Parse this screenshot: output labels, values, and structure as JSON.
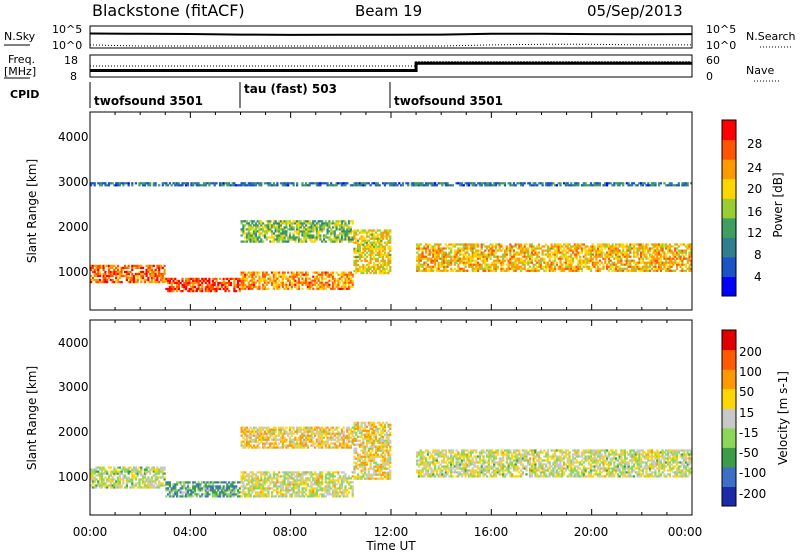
{
  "header": {
    "site": "Blackstone (fitACF)",
    "beam": "Beam 19",
    "date": "05/Sep/2013"
  },
  "noise_panel": {
    "left_label": "N.Sky",
    "left_ticks": [
      "10^5",
      "10^0"
    ],
    "right_ticks": [
      "10^5",
      "10^0"
    ],
    "right_label": "N.Search"
  },
  "freq_panel": {
    "left_label_1": "Freq.",
    "left_label_2": "[MHz]",
    "left_ticks": [
      "18",
      "8"
    ],
    "right_ticks": [
      "60",
      "0"
    ],
    "right_label": "Nave"
  },
  "cpid": {
    "label": "CPID",
    "modes": [
      {
        "name": "twofsound 3501",
        "start_hour": 0
      },
      {
        "name": "tau (fast) 503",
        "start_hour": 6
      },
      {
        "name": "twofsound 3501",
        "start_hour": 12
      }
    ]
  },
  "xaxis": {
    "label": "Time UT",
    "ticks": [
      "00:00",
      "04:00",
      "08:00",
      "12:00",
      "16:00",
      "20:00",
      "00:00"
    ]
  },
  "power_panel": {
    "ylabel": "Slant Range [km]",
    "yticks": [
      "4000",
      "3000",
      "2000",
      "1000"
    ],
    "colorbar_label": "Power [dB]",
    "colorbar_ticks": [
      "28",
      "24",
      "20",
      "16",
      "12",
      "8",
      "4"
    ],
    "colors": [
      "#0000ff",
      "#1a52c8",
      "#2f7f8f",
      "#3f9f60",
      "#9acd32",
      "#ffd700",
      "#ff9900",
      "#ff5500",
      "#ff0000"
    ]
  },
  "velocity_panel": {
    "ylabel": "Slant Range [km]",
    "yticks": [
      "4000",
      "3000",
      "2000",
      "1000"
    ],
    "colorbar_label": "Velocity [m s-1]",
    "colorbar_ticks": [
      "200",
      "100",
      "50",
      "15",
      "-15",
      "-50",
      "-100",
      "-200"
    ],
    "colors": [
      "#1b2ba8",
      "#3e6fc7",
      "#3c9c4a",
      "#8cd65a",
      "#c8c8c8",
      "#ffd700",
      "#ff9900",
      "#ff5a00",
      "#e00000"
    ]
  },
  "chart_data": [
    {
      "type": "line",
      "title": "N.Sky / N.Search",
      "x": [
        0,
        2,
        4,
        6,
        8,
        10,
        12,
        14,
        16,
        18,
        20,
        22,
        24
      ],
      "series": [
        {
          "name": "N.Sky",
          "values": [
            3000,
            2500,
            2200,
            1500,
            1200,
            1300,
            1400,
            1500,
            2500,
            2600,
            2000,
            1800,
            2000
          ]
        },
        {
          "name": "N.Search",
          "values": [
            2,
            1,
            1,
            1,
            1,
            1,
            1,
            1,
            2,
            3,
            3,
            2,
            2
          ]
        }
      ],
      "yscale": "log"
    },
    {
      "type": "line",
      "title": "Freq. / Nave",
      "x": [
        0,
        6,
        12,
        13,
        24
      ],
      "series": [
        {
          "name": "Freq. [MHz]",
          "values": [
            10.5,
            10.5,
            10.5,
            14.5,
            14.5
          ]
        },
        {
          "name": "Nave",
          "values": [
            30,
            30,
            30,
            45,
            45
          ]
        }
      ],
      "ylim": [
        8,
        18
      ]
    },
    {
      "type": "heatmap",
      "title": "Power [dB]",
      "xlabel": "Time UT",
      "ylabel": "Slant Range [km]",
      "xlim": [
        0,
        24
      ],
      "ylim": [
        200,
        4600
      ],
      "zlim": [
        0,
        30
      ],
      "bands": [
        {
          "hour": [
            0,
            3
          ],
          "range_km": [
            800,
            1200
          ],
          "power_db": 24
        },
        {
          "hour": [
            3,
            6
          ],
          "range_km": [
            600,
            900
          ],
          "power_db": 26
        },
        {
          "hour": [
            6,
            10.5
          ],
          "range_km": [
            650,
            1050
          ],
          "power_db": 22
        },
        {
          "hour": [
            6,
            10.5
          ],
          "range_km": [
            1700,
            2200
          ],
          "power_db": 14
        },
        {
          "hour": [
            10.5,
            12
          ],
          "range_km": [
            1000,
            2000
          ],
          "power_db": 18
        },
        {
          "hour": [
            13,
            24
          ],
          "range_km": [
            1050,
            1700
          ],
          "power_db": 20
        },
        {
          "hour": [
            0,
            24
          ],
          "range_km": [
            2950,
            3050
          ],
          "power_db": 8
        }
      ]
    },
    {
      "type": "heatmap",
      "title": "Velocity [m s-1]",
      "xlabel": "Time UT",
      "ylabel": "Slant Range [km]",
      "xlim": [
        0,
        24
      ],
      "ylim": [
        200,
        4600
      ],
      "zlim": [
        -200,
        200
      ],
      "bands": [
        {
          "hour": [
            0,
            3
          ],
          "range_km": [
            800,
            1300
          ],
          "velocity": -10
        },
        {
          "hour": [
            3,
            6
          ],
          "range_km": [
            600,
            950
          ],
          "velocity": -80
        },
        {
          "hour": [
            6,
            10.5
          ],
          "range_km": [
            600,
            1200
          ],
          "velocity": 5
        },
        {
          "hour": [
            6,
            10.5
          ],
          "range_km": [
            1700,
            2200
          ],
          "velocity": 40
        },
        {
          "hour": [
            10.5,
            12
          ],
          "range_km": [
            1000,
            2300
          ],
          "velocity": 30
        },
        {
          "hour": [
            13,
            24
          ],
          "range_km": [
            1050,
            1700
          ],
          "velocity": 0
        }
      ]
    }
  ]
}
